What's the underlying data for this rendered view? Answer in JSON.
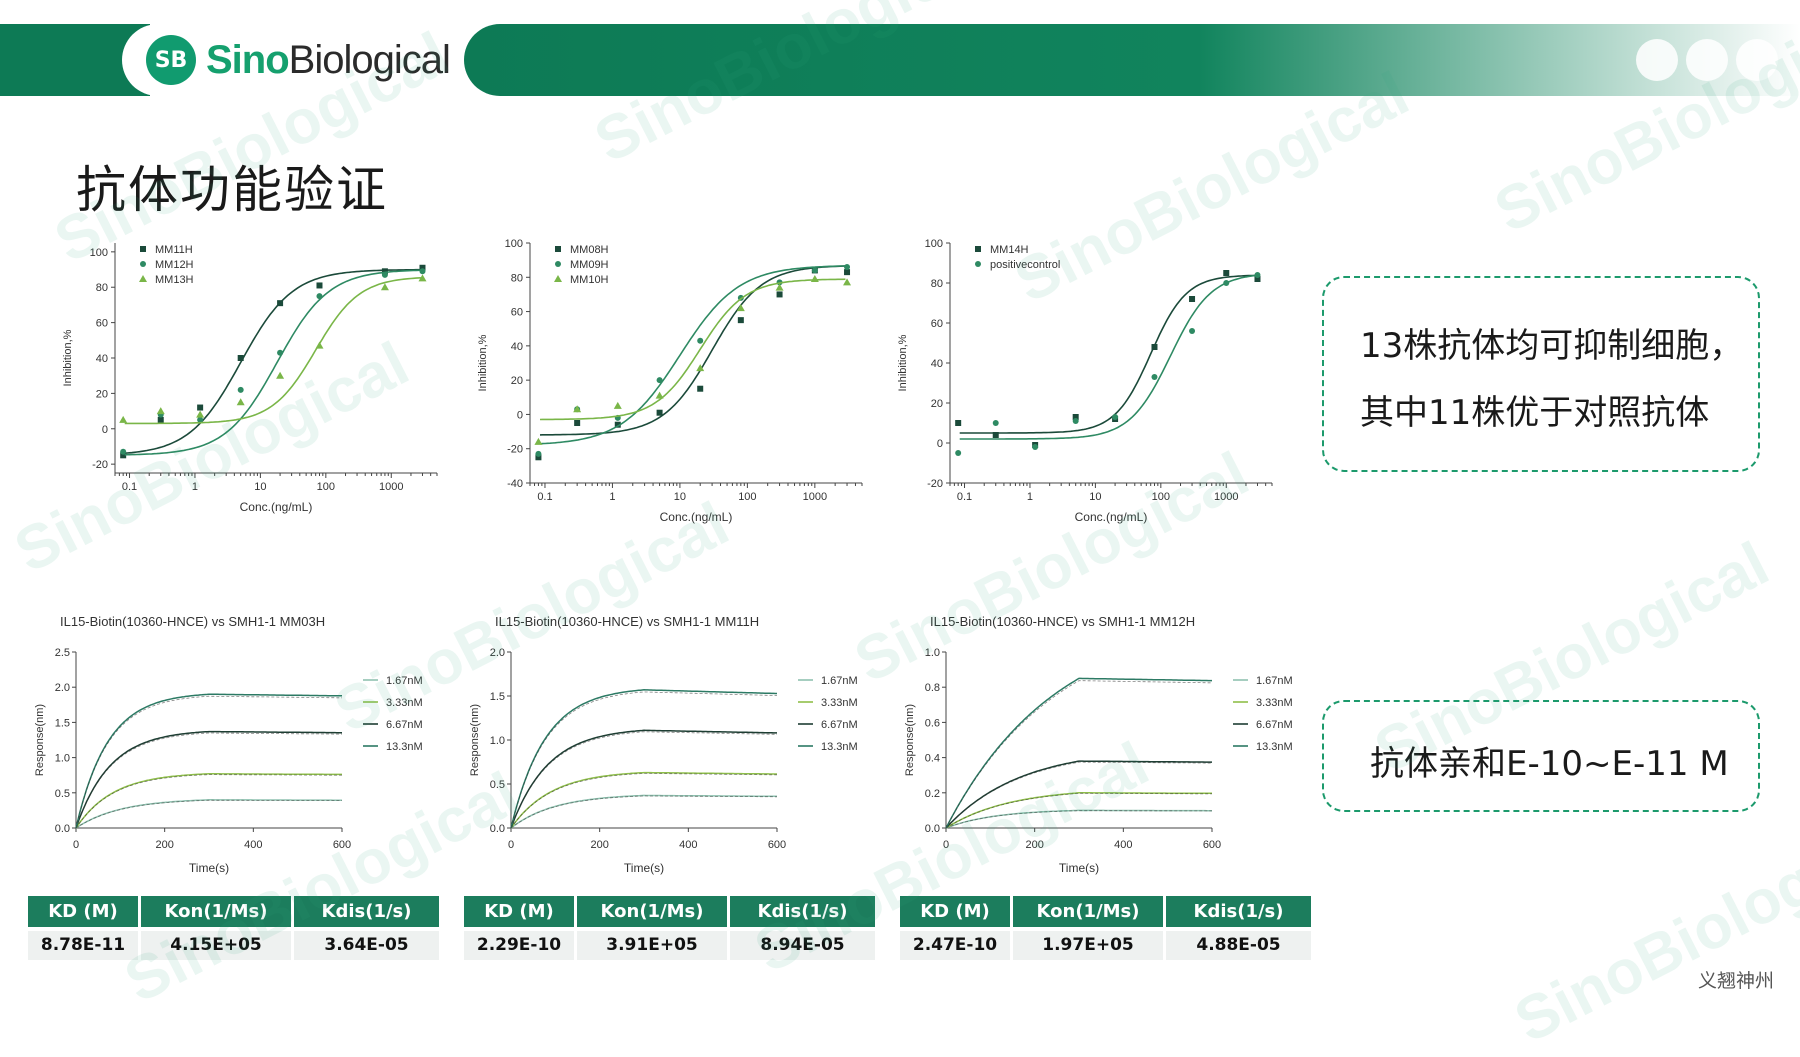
{
  "header": {
    "logo_badge": "SB",
    "logo_sino": "Sino",
    "logo_bio": "Biological",
    "colors": {
      "dark_green": "#0d7a55",
      "accent": "#15a06e"
    }
  },
  "page_title": "抗体功能验证",
  "watermark_text": "SinoBiological",
  "chart_data": [
    {
      "id": "inhib1",
      "type": "scatter",
      "xlabel": "Conc.(ng/mL)",
      "ylabel": "Inhibition,%",
      "xscale": "log",
      "xlim": [
        0.06,
        5000
      ],
      "ylim": [
        -25,
        105
      ],
      "xticks": [
        0.1,
        1,
        10,
        100,
        1000
      ],
      "xtick_labels": [
        "0.1",
        "1",
        "10",
        "100",
        "1000"
      ],
      "yticks": [
        -20,
        0,
        20,
        40,
        60,
        80,
        100
      ],
      "ytick_labels": [
        "-20",
        "0",
        "20",
        "40",
        "60",
        "80",
        "100"
      ],
      "legend": "top-left",
      "series": [
        {
          "name": "MM11H",
          "marker": "square",
          "color": "#1b4a3a",
          "bottom": -15,
          "top": 90,
          "ec50": 5,
          "hill": 1.1,
          "points": [
            [
              0.08,
              -15
            ],
            [
              0.3,
              5
            ],
            [
              1.2,
              12
            ],
            [
              5,
              40
            ],
            [
              20,
              71
            ],
            [
              80,
              81
            ],
            [
              800,
              89
            ],
            [
              3000,
              91
            ]
          ]
        },
        {
          "name": "MM12H",
          "marker": "circle",
          "color": "#2e8a63",
          "bottom": -15,
          "top": 90,
          "ec50": 18,
          "hill": 1.1,
          "points": [
            [
              0.08,
              -13
            ],
            [
              0.3,
              8
            ],
            [
              1.2,
              5
            ],
            [
              5,
              22
            ],
            [
              20,
              43
            ],
            [
              80,
              75
            ],
            [
              800,
              87
            ],
            [
              3000,
              89
            ]
          ]
        },
        {
          "name": "MM13H",
          "marker": "triangle",
          "color": "#7ab648",
          "bottom": 3,
          "top": 86,
          "ec50": 70,
          "hill": 1.3,
          "points": [
            [
              0.08,
              5
            ],
            [
              0.3,
              10
            ],
            [
              1.2,
              8
            ],
            [
              5,
              15
            ],
            [
              20,
              30
            ],
            [
              80,
              47
            ],
            [
              800,
              80
            ],
            [
              3000,
              85
            ]
          ]
        }
      ]
    },
    {
      "id": "inhib2",
      "type": "scatter",
      "xlabel": "Conc.(ng/mL)",
      "ylabel": "Inhibition,%",
      "xscale": "log",
      "xlim": [
        0.06,
        5000
      ],
      "ylim": [
        -40,
        100
      ],
      "xticks": [
        0.1,
        1,
        10,
        100,
        1000
      ],
      "xtick_labels": [
        "0.1",
        "1",
        "10",
        "100",
        "1000"
      ],
      "yticks": [
        -40,
        -20,
        0,
        20,
        40,
        60,
        80,
        100
      ],
      "ytick_labels": [
        "-40",
        "-20",
        "0",
        "20",
        "40",
        "60",
        "80",
        "100"
      ],
      "legend": "top-left",
      "series": [
        {
          "name": "MM08H",
          "marker": "square",
          "color": "#1b4a3a",
          "bottom": -12,
          "top": 87,
          "ec50": 30,
          "hill": 1.2,
          "points": [
            [
              0.08,
              -25
            ],
            [
              0.3,
              -5
            ],
            [
              1.2,
              -6
            ],
            [
              5,
              1
            ],
            [
              20,
              15
            ],
            [
              80,
              55
            ],
            [
              300,
              70
            ],
            [
              1000,
              84
            ],
            [
              3000,
              83
            ]
          ]
        },
        {
          "name": "MM09H",
          "marker": "circle",
          "color": "#2e8a63",
          "bottom": -18,
          "top": 87,
          "ec50": 10,
          "hill": 1.0,
          "points": [
            [
              0.08,
              -23
            ],
            [
              0.3,
              3
            ],
            [
              1.2,
              -2
            ],
            [
              5,
              20
            ],
            [
              20,
              43
            ],
            [
              80,
              68
            ],
            [
              300,
              77
            ],
            [
              1000,
              84
            ],
            [
              3000,
              86
            ]
          ]
        },
        {
          "name": "MM10H",
          "marker": "triangle",
          "color": "#7ab648",
          "bottom": -3,
          "top": 79,
          "ec50": 20,
          "hill": 1.3,
          "points": [
            [
              0.08,
              -16
            ],
            [
              0.3,
              3
            ],
            [
              1.2,
              5
            ],
            [
              5,
              11
            ],
            [
              20,
              27
            ],
            [
              80,
              62
            ],
            [
              300,
              74
            ],
            [
              1000,
              79
            ],
            [
              3000,
              77
            ]
          ]
        }
      ]
    },
    {
      "id": "inhib3",
      "type": "scatter",
      "xlabel": "Conc.(ng/mL)",
      "ylabel": "Inhibition,%",
      "xscale": "log",
      "xlim": [
        0.06,
        5000
      ],
      "ylim": [
        -20,
        100
      ],
      "xticks": [
        0.1,
        1,
        10,
        100,
        1000
      ],
      "xtick_labels": [
        "0.1",
        "1",
        "10",
        "100",
        "1000"
      ],
      "yticks": [
        -20,
        0,
        20,
        40,
        60,
        80,
        100
      ],
      "ytick_labels": [
        "-20",
        "0",
        "20",
        "40",
        "60",
        "80",
        "100"
      ],
      "legend": "top-left",
      "series": [
        {
          "name": "MM14H",
          "marker": "square",
          "color": "#1b4a3a",
          "bottom": 5,
          "top": 84,
          "ec50": 70,
          "hill": 1.6,
          "points": [
            [
              0.08,
              10
            ],
            [
              0.3,
              4
            ],
            [
              1.2,
              -1
            ],
            [
              5,
              13
            ],
            [
              20,
              12
            ],
            [
              80,
              48
            ],
            [
              300,
              72
            ],
            [
              1000,
              85
            ],
            [
              3000,
              82
            ]
          ]
        },
        {
          "name": "positivecontrol",
          "marker": "circle",
          "color": "#2e8a63",
          "bottom": 2,
          "top": 85,
          "ec50": 140,
          "hill": 1.4,
          "points": [
            [
              0.08,
              -5
            ],
            [
              0.3,
              10
            ],
            [
              1.2,
              -2
            ],
            [
              5,
              11
            ],
            [
              20,
              13
            ],
            [
              80,
              33
            ],
            [
              300,
              56
            ],
            [
              1000,
              80
            ],
            [
              3000,
              84
            ]
          ]
        }
      ]
    },
    {
      "id": "kin1",
      "type": "line",
      "title": "IL15-Biotin(10360-HNCE) vs SMH1-1 MM03H",
      "xlabel": "Time(s)",
      "ylabel": "Response(nm)",
      "xlim": [
        0,
        600
      ],
      "ylim": [
        0,
        2.5
      ],
      "xticks": [
        0,
        200,
        400,
        600
      ],
      "xtick_labels": [
        "0",
        "200",
        "400",
        "600"
      ],
      "yticks": [
        0,
        0.5,
        1.0,
        1.5,
        2.0,
        2.5
      ],
      "ytick_labels": [
        "0.0",
        "0.5",
        "1.0",
        "1.5",
        "2.0",
        "2.5"
      ],
      "assoc_end": 300,
      "legend": "right",
      "series": [
        {
          "name": "1.67nM",
          "color": "#8fc2b0",
          "plateau": 0.4,
          "k": 0.01,
          "kd": 4e-05
        },
        {
          "name": "3.33nM",
          "color": "#8fbf4a",
          "plateau": 0.77,
          "k": 0.012,
          "kd": 4e-05
        },
        {
          "name": "6.67nM",
          "color": "#1e3e33",
          "plateau": 1.37,
          "k": 0.013,
          "kd": 4e-05
        },
        {
          "name": "13.3nM",
          "color": "#2c7a64",
          "plateau": 1.9,
          "k": 0.014,
          "kd": 4e-05
        }
      ]
    },
    {
      "id": "kin2",
      "type": "line",
      "title": "IL15-Biotin(10360-HNCE) vs SMH1-1 MM11H",
      "xlabel": "Time(s)",
      "ylabel": "Response(nm)",
      "xlim": [
        0,
        600
      ],
      "ylim": [
        0,
        2.0
      ],
      "xticks": [
        0,
        200,
        400,
        600
      ],
      "xtick_labels": [
        "0",
        "200",
        "400",
        "600"
      ],
      "yticks": [
        0,
        0.5,
        1.0,
        1.5,
        2.0
      ],
      "ytick_labels": [
        "0.0",
        "0.5",
        "1.0",
        "1.5",
        "2.0"
      ],
      "assoc_end": 300,
      "legend": "right",
      "series": [
        {
          "name": "1.67nM",
          "color": "#8fc2b0",
          "plateau": 0.37,
          "k": 0.01,
          "kd": 9e-05
        },
        {
          "name": "3.33nM",
          "color": "#8fbf4a",
          "plateau": 0.63,
          "k": 0.011,
          "kd": 9e-05
        },
        {
          "name": "6.67nM",
          "color": "#1e3e33",
          "plateau": 1.11,
          "k": 0.012,
          "kd": 9e-05
        },
        {
          "name": "13.3nM",
          "color": "#2c7a64",
          "plateau": 1.57,
          "k": 0.013,
          "kd": 9e-05
        }
      ]
    },
    {
      "id": "kin3",
      "type": "line",
      "title": "IL15-Biotin(10360-HNCE) vs SMH1-1 MM12H",
      "xlabel": "Time(s)",
      "ylabel": "Response(nm)",
      "xlim": [
        0,
        600
      ],
      "ylim": [
        0,
        1.0
      ],
      "xticks": [
        0,
        200,
        400,
        600
      ],
      "xtick_labels": [
        "0",
        "200",
        "400",
        "600"
      ],
      "yticks": [
        0,
        0.2,
        0.4,
        0.6,
        0.8,
        1.0
      ],
      "ytick_labels": [
        "0.0",
        "0.2",
        "0.4",
        "0.6",
        "0.8",
        "1.0"
      ],
      "assoc_end": 300,
      "legend": "right",
      "series": [
        {
          "name": "1.67nM",
          "color": "#8fc2b0",
          "plateau": 0.1,
          "k": 0.009,
          "kd": 5e-05
        },
        {
          "name": "3.33nM",
          "color": "#8fbf4a",
          "plateau": 0.2,
          "k": 0.007,
          "kd": 5e-05
        },
        {
          "name": "6.67nM",
          "color": "#1e3e33",
          "plateau": 0.38,
          "k": 0.006,
          "kd": 5e-05
        },
        {
          "name": "13.3nM",
          "color": "#2c7a64",
          "plateau": 0.85,
          "k": 0.004,
          "kd": 5e-05
        }
      ]
    }
  ],
  "tables": [
    {
      "headers": [
        "KD (M)",
        "Kon(1/Ms)",
        "Kdis(1/s)"
      ],
      "values": [
        "8.78E-11",
        "4.15E+05",
        "3.64E-05"
      ]
    },
    {
      "headers": [
        "KD (M)",
        "Kon(1/Ms)",
        "Kdis(1/s)"
      ],
      "values": [
        "2.29E-10",
        "3.91E+05",
        "8.94E-05"
      ]
    },
    {
      "headers": [
        "KD (M)",
        "Kon(1/Ms)",
        "Kdis(1/s)"
      ],
      "values": [
        "2.47E-10",
        "1.97E+05",
        "4.88E-05"
      ]
    }
  ],
  "callouts": {
    "top": [
      "13株抗体均可抑制细胞，",
      "其中11株优于对照抗体"
    ],
    "bottom": "抗体亲和E-10~E-11 M"
  },
  "footer": "义翘神州"
}
